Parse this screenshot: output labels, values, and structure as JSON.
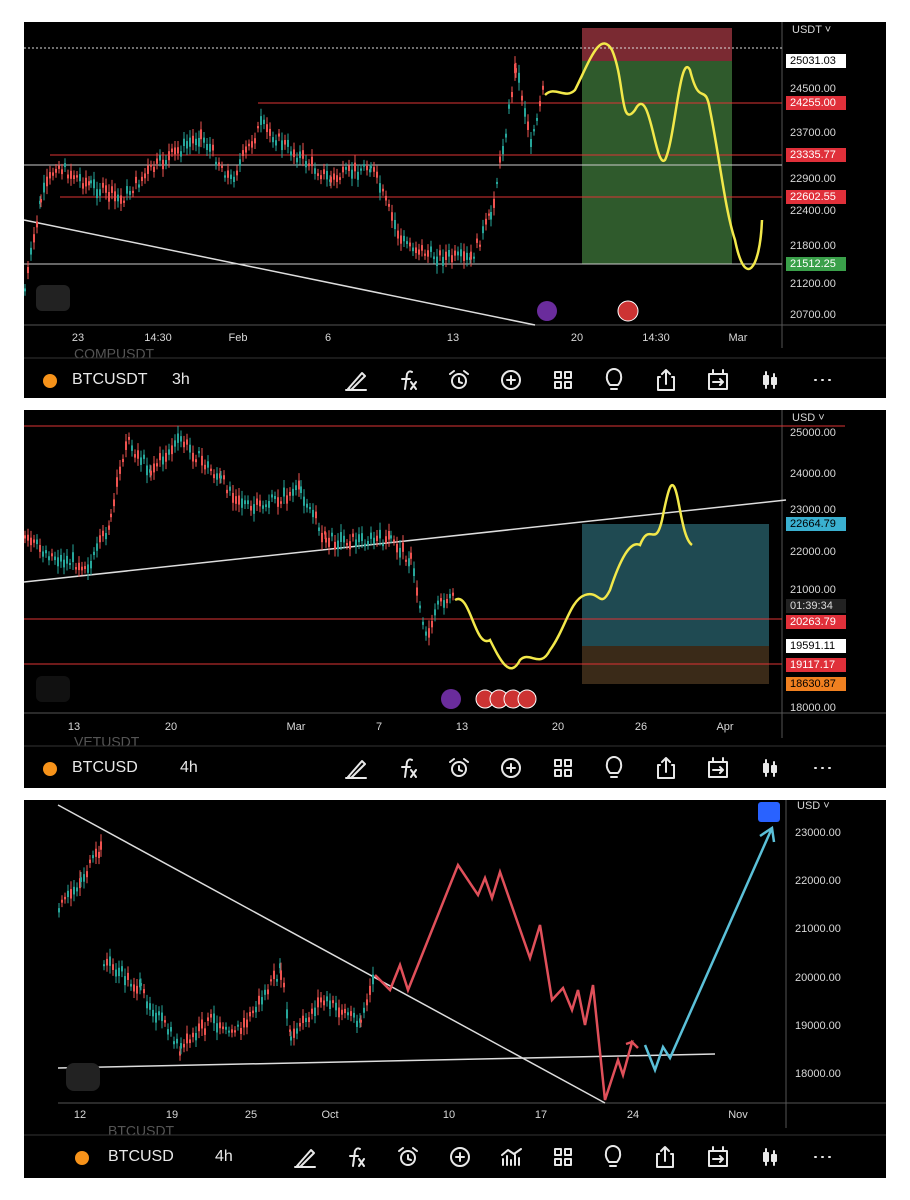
{
  "panels": [
    {
      "ghost_symbol": "COMPUSDT",
      "currency": "USDT ˅",
      "price_labels": [
        "25031.03",
        "24500.00",
        "24255.00",
        "23700.00",
        "23335.77",
        "22900.00",
        "22602.55",
        "22400.00",
        "21800.00",
        "21512.25",
        "21200.00",
        "20700.00"
      ],
      "time_labels": [
        "23",
        "14:30",
        "Feb",
        "6",
        "13",
        "20",
        "14:30",
        "Mar"
      ],
      "symbol": "BTCUSDT",
      "interval": "3h"
    },
    {
      "ghost_symbol": "VETUSDT",
      "currency": "USD ˅",
      "price_labels": [
        "25000.00",
        "24000.00",
        "23000.00",
        "22664.79",
        "22000.00",
        "21000.00",
        "01:39:34",
        "20263.79",
        "19591.11",
        "19117.17",
        "18630.87",
        "18000.00"
      ],
      "time_labels": [
        "13",
        "20",
        "Mar",
        "7",
        "13",
        "20",
        "26",
        "Apr"
      ],
      "symbol": "BTCUSD",
      "interval": "4h"
    },
    {
      "ghost_symbol": "BTCUSDT",
      "currency": "USD ˅",
      "price_labels": [
        "23000.00",
        "22000.00",
        "21000.00",
        "20000.00",
        "19000.00",
        "18000.00"
      ],
      "time_labels": [
        "12",
        "19",
        "25",
        "Oct",
        "10",
        "17",
        "24",
        "Nov"
      ],
      "symbol": "BTCUSD",
      "interval": "4h"
    }
  ]
}
